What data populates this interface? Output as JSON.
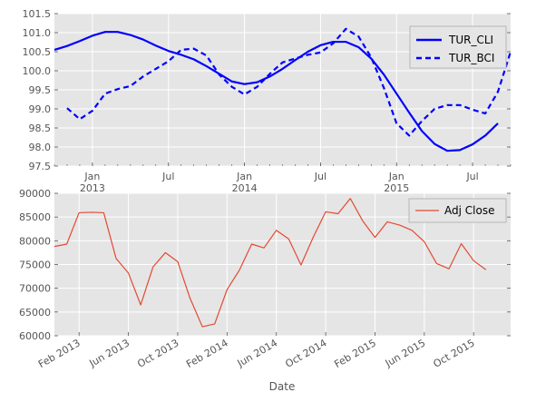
{
  "chart_data": [
    {
      "type": "line",
      "xlabel": "",
      "ylabel": "",
      "ylim": [
        97.5,
        101.5
      ],
      "yticks": [
        97.5,
        98.0,
        98.5,
        99.0,
        99.5,
        100.0,
        100.5,
        101.0,
        101.5
      ],
      "ytick_labels": [
        "97.5",
        "98.0",
        "98.5",
        "99.0",
        "99.5",
        "100.0",
        "100.5",
        "101.0",
        "101.5"
      ],
      "xlim": [
        "2012-10",
        "2015-10"
      ],
      "xticks": [
        {
          "x": "2013-01",
          "label": "Jan",
          "year": "2013"
        },
        {
          "x": "2013-07",
          "label": "Jul",
          "year": ""
        },
        {
          "x": "2014-01",
          "label": "Jan",
          "year": "2014"
        },
        {
          "x": "2014-07",
          "label": "Jul",
          "year": ""
        },
        {
          "x": "2015-01",
          "label": "Jan",
          "year": "2015"
        },
        {
          "x": "2015-07",
          "label": "Jul",
          "year": ""
        }
      ],
      "grid": true,
      "legend": "top-right",
      "series": [
        {
          "name": "TUR_CLI",
          "color": "#0000ff",
          "style": "solid",
          "points": [
            [
              "2012-10",
              100.55
            ],
            [
              "2012-11",
              100.65
            ],
            [
              "2012-12",
              100.78
            ],
            [
              "2013-01",
              100.92
            ],
            [
              "2013-02",
              101.02
            ],
            [
              "2013-03",
              101.02
            ],
            [
              "2013-04",
              100.94
            ],
            [
              "2013-05",
              100.82
            ],
            [
              "2013-06",
              100.66
            ],
            [
              "2013-07",
              100.52
            ],
            [
              "2013-08",
              100.42
            ],
            [
              "2013-09",
              100.3
            ],
            [
              "2013-10",
              100.12
            ],
            [
              "2013-11",
              99.92
            ],
            [
              "2013-12",
              99.72
            ],
            [
              "2014-01",
              99.65
            ],
            [
              "2014-02",
              99.7
            ],
            [
              "2014-03",
              99.85
            ],
            [
              "2014-04",
              100.05
            ],
            [
              "2014-05",
              100.28
            ],
            [
              "2014-06",
              100.5
            ],
            [
              "2014-07",
              100.67
            ],
            [
              "2014-08",
              100.76
            ],
            [
              "2014-09",
              100.76
            ],
            [
              "2014-10",
              100.62
            ],
            [
              "2014-11",
              100.32
            ],
            [
              "2014-12",
              99.9
            ],
            [
              "2015-01",
              99.4
            ],
            [
              "2015-02",
              98.9
            ],
            [
              "2015-03",
              98.42
            ],
            [
              "2015-04",
              98.08
            ],
            [
              "2015-05",
              97.9
            ],
            [
              "2015-06",
              97.92
            ],
            [
              "2015-07",
              98.07
            ],
            [
              "2015-08",
              98.3
            ],
            [
              "2015-09",
              98.62
            ]
          ]
        },
        {
          "name": "TUR_BCI",
          "color": "#0000ff",
          "style": "dashed",
          "points": [
            [
              "2012-11",
              99.02
            ],
            [
              "2012-12",
              98.73
            ],
            [
              "2013-01",
              98.95
            ],
            [
              "2013-02",
              99.4
            ],
            [
              "2013-03",
              99.52
            ],
            [
              "2013-04",
              99.6
            ],
            [
              "2013-05",
              99.85
            ],
            [
              "2013-06",
              100.05
            ],
            [
              "2013-07",
              100.25
            ],
            [
              "2013-08",
              100.55
            ],
            [
              "2013-09",
              100.58
            ],
            [
              "2013-10",
              100.4
            ],
            [
              "2013-11",
              99.9
            ],
            [
              "2013-12",
              99.58
            ],
            [
              "2014-01",
              99.38
            ],
            [
              "2014-02",
              99.58
            ],
            [
              "2014-03",
              99.92
            ],
            [
              "2014-04",
              100.22
            ],
            [
              "2014-05",
              100.32
            ],
            [
              "2014-06",
              100.42
            ],
            [
              "2014-07",
              100.48
            ],
            [
              "2014-08",
              100.72
            ],
            [
              "2014-09",
              101.1
            ],
            [
              "2014-10",
              100.9
            ],
            [
              "2014-11",
              100.35
            ],
            [
              "2014-12",
              99.55
            ],
            [
              "2015-01",
              98.62
            ],
            [
              "2015-02",
              98.3
            ],
            [
              "2015-03",
              98.68
            ],
            [
              "2015-04",
              99.0
            ],
            [
              "2015-05",
              99.1
            ],
            [
              "2015-06",
              99.1
            ],
            [
              "2015-07",
              98.98
            ],
            [
              "2015-08",
              98.88
            ],
            [
              "2015-09",
              99.45
            ],
            [
              "2015-10",
              100.5
            ]
          ]
        }
      ]
    },
    {
      "type": "line",
      "xlabel": "Date",
      "ylabel": "",
      "ylim": [
        60000,
        90000
      ],
      "yticks": [
        60000,
        65000,
        70000,
        75000,
        80000,
        85000,
        90000
      ],
      "ytick_labels": [
        "60000",
        "65000",
        "70000",
        "75000",
        "80000",
        "85000",
        "90000"
      ],
      "xlim": [
        "2012-12",
        "2016-01"
      ],
      "xticks": [
        {
          "x": "2013-02",
          "label": "Feb 2013"
        },
        {
          "x": "2013-06",
          "label": "Jun 2013"
        },
        {
          "x": "2013-10",
          "label": "Oct 2013"
        },
        {
          "x": "2014-02",
          "label": "Feb 2014"
        },
        {
          "x": "2014-06",
          "label": "Jun 2014"
        },
        {
          "x": "2014-10",
          "label": "Oct 2014"
        },
        {
          "x": "2015-02",
          "label": "Feb 2015"
        },
        {
          "x": "2015-06",
          "label": "Jun 2015"
        },
        {
          "x": "2015-10",
          "label": "Oct 2015"
        }
      ],
      "grid": true,
      "legend": "top-right",
      "series": [
        {
          "name": "Adj Close",
          "color": "#e24a33",
          "style": "solid",
          "points": [
            [
              "2012-12",
              78800
            ],
            [
              "2013-01",
              79300
            ],
            [
              "2013-02",
              85900
            ],
            [
              "2013-03",
              86000
            ],
            [
              "2013-04",
              85900
            ],
            [
              "2013-05",
              76300
            ],
            [
              "2013-06",
              73200
            ],
            [
              "2013-07",
              66500
            ],
            [
              "2013-08",
              74500
            ],
            [
              "2013-09",
              77500
            ],
            [
              "2013-10",
              75600
            ],
            [
              "2013-11",
              67900
            ],
            [
              "2013-12",
              61900
            ],
            [
              "2014-01",
              62500
            ],
            [
              "2014-02",
              69700
            ],
            [
              "2014-03",
              73800
            ],
            [
              "2014-04",
              79300
            ],
            [
              "2014-05",
              78500
            ],
            [
              "2014-06",
              82200
            ],
            [
              "2014-07",
              80400
            ],
            [
              "2014-08",
              74900
            ],
            [
              "2014-09",
              80800
            ],
            [
              "2014-10",
              86100
            ],
            [
              "2014-11",
              85700
            ],
            [
              "2014-12",
              88900
            ],
            [
              "2015-01",
              84200
            ],
            [
              "2015-02",
              80700
            ],
            [
              "2015-03",
              84000
            ],
            [
              "2015-04",
              83300
            ],
            [
              "2015-05",
              82200
            ],
            [
              "2015-06",
              79800
            ],
            [
              "2015-07",
              75200
            ],
            [
              "2015-08",
              74100
            ],
            [
              "2015-09",
              79400
            ],
            [
              "2015-10",
              75800
            ],
            [
              "2015-11",
              73900
            ]
          ]
        }
      ]
    }
  ],
  "colors": {
    "plot_background": "#e5e5e5",
    "grid": "#ffffff",
    "tick_text": "#555555"
  }
}
